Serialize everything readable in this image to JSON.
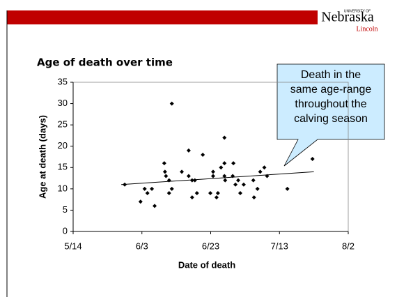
{
  "header": {
    "logo_small": "UNIVERSITY OF",
    "logo": "Nebraska",
    "logo_sub": "Lincoln"
  },
  "chart_data": {
    "type": "scatter",
    "title": "Age of death over time",
    "xlabel": "Date of death",
    "ylabel": "Age at death (days)",
    "annotation": [
      "Death in the",
      "same age-range",
      "throughout the",
      "calving season"
    ],
    "color": "#000000",
    "x": [
      149,
      153.6,
      154.8,
      155.6,
      156.9,
      157.7,
      160.5,
      160.7,
      161,
      161.9,
      161.9,
      162.7,
      162.7,
      165.6,
      167.6,
      167.6,
      168.6,
      168.6,
      169.4,
      170,
      171.7,
      173.9,
      174.7,
      174.7,
      175.7,
      176.1,
      177,
      178,
      178,
      178.2,
      178,
      180.4,
      180.6,
      181.2,
      182,
      182.6,
      183.6,
      186.4,
      186.6,
      187.6,
      188.4,
      189.6,
      190.4,
      196.3,
      203.6
    ],
    "values": [
      11,
      7,
      10,
      9,
      10,
      6,
      16,
      14,
      13,
      12,
      9,
      30,
      10,
      14,
      19,
      13,
      12,
      8,
      12,
      9,
      18,
      9,
      13,
      14,
      8,
      9,
      15,
      16,
      13,
      12,
      22,
      13,
      16,
      11,
      12,
      9,
      11,
      12,
      8,
      10,
      14,
      15,
      13,
      10,
      17
    ],
    "trendline": {
      "x": [
        148,
        204
      ],
      "values": [
        11,
        14
      ]
    },
    "xlim": [
      134,
      214
    ],
    "xticks": [
      {
        "value": 134,
        "label": "5/14"
      },
      {
        "value": 154,
        "label": "6/3"
      },
      {
        "value": 174,
        "label": "6/23"
      },
      {
        "value": 194,
        "label": "7/13"
      },
      {
        "value": 214,
        "label": "8/2"
      }
    ],
    "ylim": [
      0,
      35
    ],
    "yticks": [
      0,
      5,
      10,
      15,
      20,
      25,
      30,
      35
    ]
  }
}
